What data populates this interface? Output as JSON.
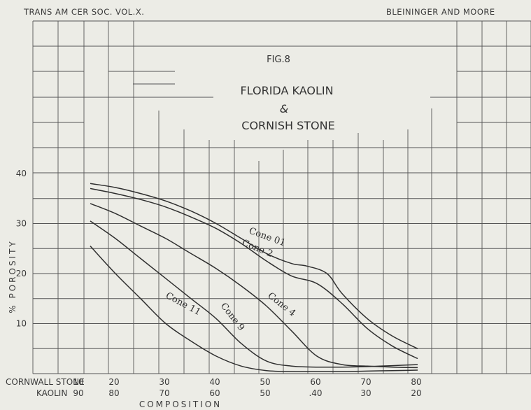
{
  "header": {
    "left": "TRANS AM CER SOC.   VOL.X.",
    "right": "BLEININGER AND MOORE"
  },
  "chart_data": {
    "type": "line",
    "fig_label": "FIG.8",
    "title_lines": [
      "FLORIDA KAOLIN",
      "&",
      "CORNISH STONE"
    ],
    "ylabel": "% POROSITY",
    "xlabel": "COMPOSITION",
    "x_row1_label": "CORNWALL STONE",
    "x_row2_label": "KAOLIN",
    "x_ticks": [
      10,
      20,
      30,
      40,
      50,
      60,
      70,
      80
    ],
    "x_ticks_row1": [
      "10",
      "20",
      "30",
      "40",
      "50",
      "60",
      "70",
      "80"
    ],
    "x_ticks_row2": [
      "90",
      "80",
      "70",
      "60",
      "50",
      ".40",
      "30",
      "20"
    ],
    "y_ticks": [
      "10",
      "20",
      "30",
      "40"
    ],
    "y_tick_values": [
      10,
      20,
      30,
      40
    ],
    "xlim": [
      10,
      90
    ],
    "ylim": [
      -5,
      55
    ],
    "series": [
      {
        "name": "Cone 01",
        "x": [
          15,
          20,
          25,
          30,
          35,
          40,
          45,
          50,
          55,
          58,
          62,
          65,
          70,
          75,
          80
        ],
        "y": [
          38,
          37.2,
          36,
          34.5,
          32.5,
          30,
          27,
          24,
          22,
          21.5,
          20,
          16,
          11,
          7.5,
          5
        ]
      },
      {
        "name": "Cone 2",
        "x": [
          15,
          20,
          25,
          30,
          35,
          40,
          45,
          50,
          55,
          60,
          65,
          70,
          75,
          80
        ],
        "y": [
          37,
          36,
          34.8,
          33.3,
          31.3,
          29,
          26,
          22.5,
          19.5,
          18,
          14,
          9,
          5.5,
          3
        ]
      },
      {
        "name": "Cone 4",
        "x": [
          15,
          20,
          25,
          30,
          35,
          40,
          45,
          50,
          55,
          60,
          65,
          70,
          75,
          80
        ],
        "y": [
          34,
          32,
          29.5,
          27,
          24,
          21,
          17.5,
          13.5,
          8.5,
          3.5,
          1.8,
          1.5,
          1.3,
          1.2
        ]
      },
      {
        "name": "Cone 9",
        "x": [
          15,
          20,
          25,
          30,
          35,
          40,
          45,
          50,
          55,
          60,
          65,
          70,
          75,
          80
        ],
        "y": [
          30.5,
          27,
          23,
          19,
          15,
          11,
          6,
          2.5,
          1.5,
          1.3,
          1.3,
          1.4,
          1.6,
          1.8
        ]
      },
      {
        "name": "Cone 11",
        "x": [
          15,
          20,
          25,
          30,
          35,
          40,
          45,
          50,
          55,
          60,
          65,
          70,
          75,
          80
        ],
        "y": [
          25.5,
          20,
          15,
          10,
          6.5,
          3.5,
          1.5,
          0.6,
          0.4,
          0.4,
          0.4,
          0.5,
          0.6,
          0.7
        ]
      }
    ]
  }
}
